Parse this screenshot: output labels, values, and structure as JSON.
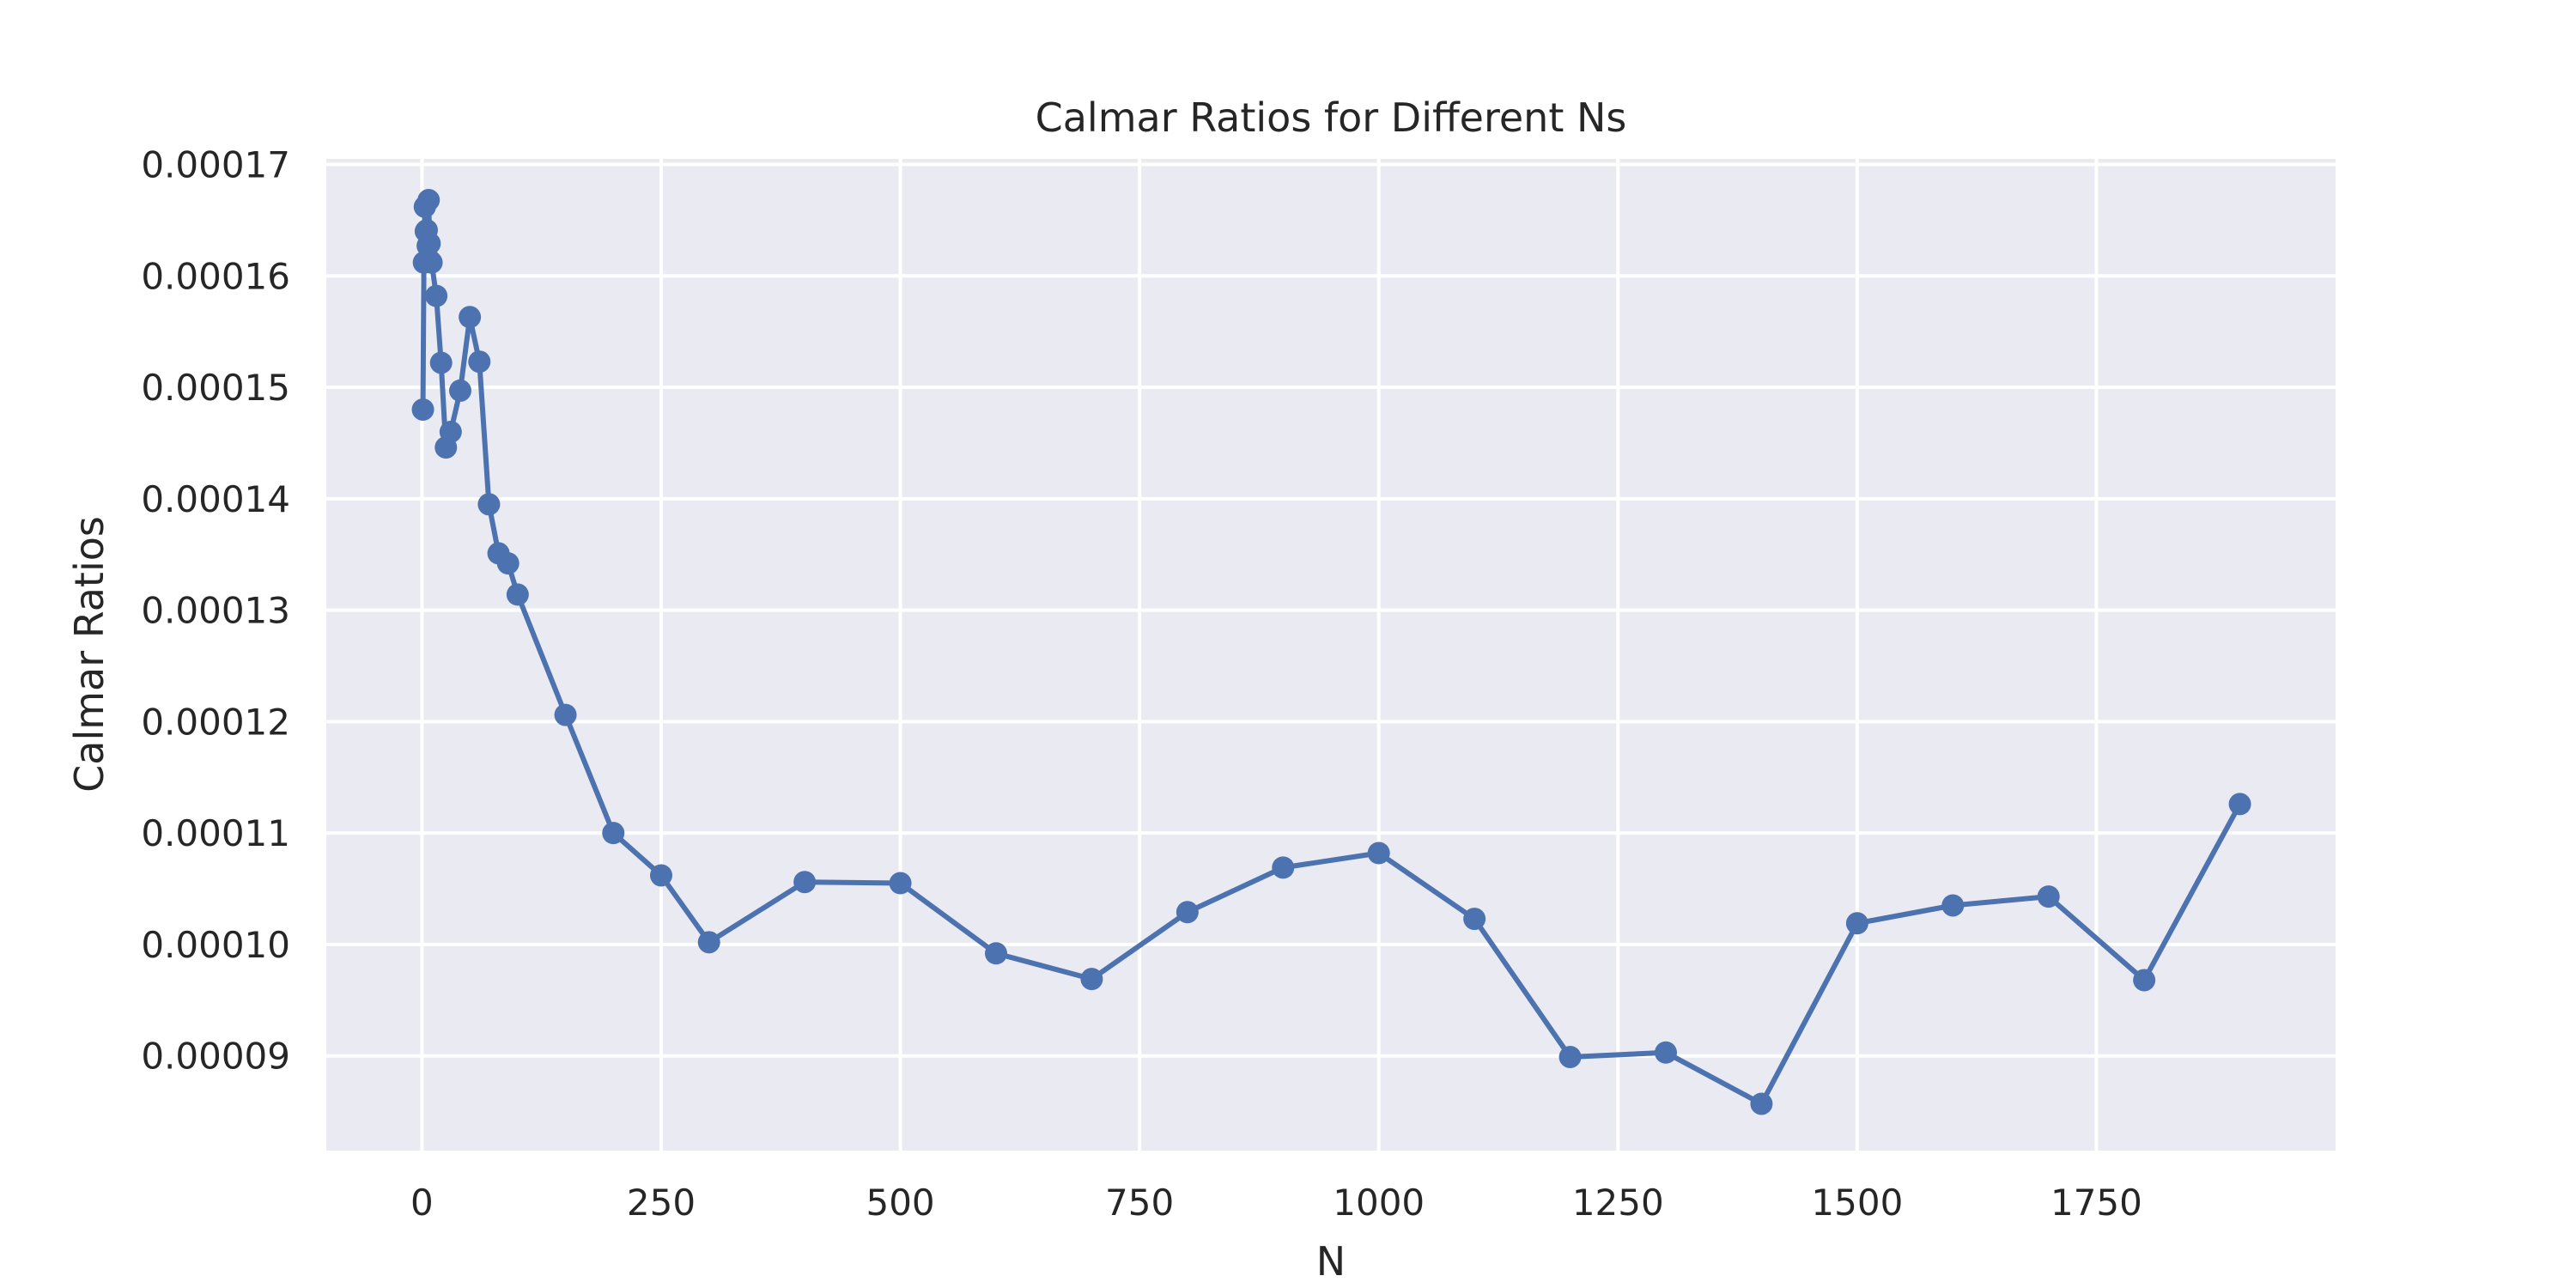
{
  "chart_data": {
    "type": "line",
    "title": "Calmar Ratios for Different Ns",
    "xlabel": "N",
    "ylabel": "Calmar Ratios",
    "xlim": [
      -100,
      2000
    ],
    "ylim": [
      8.15e-05,
      0.0001705
    ],
    "grid": true,
    "legend": "none",
    "x_ticks": [
      0,
      250,
      500,
      750,
      1000,
      1250,
      1500,
      1750
    ],
    "x_tick_labels": [
      "0",
      "250",
      "500",
      "750",
      "1000",
      "1250",
      "1500",
      "1750"
    ],
    "y_ticks": [
      9e-05,
      0.0001,
      0.00011,
      0.00012,
      0.00013,
      0.00014,
      0.00015,
      0.00016,
      0.00017
    ],
    "y_tick_labels": [
      "0.00009",
      "0.00010",
      "0.00011",
      "0.00012",
      "0.00013",
      "0.00014",
      "0.00015",
      "0.00016",
      "0.00017"
    ],
    "series": [
      {
        "color": "#4c72b0",
        "x": [
          1,
          2,
          3,
          4,
          5,
          6,
          7,
          8,
          9,
          10,
          15,
          20,
          25,
          30,
          40,
          50,
          60,
          70,
          80,
          90,
          100,
          150,
          200,
          250,
          300,
          400,
          500,
          600,
          700,
          800,
          900,
          1000,
          1100,
          1200,
          1300,
          1400,
          1500,
          1600,
          1700,
          1800,
          1900
        ],
        "y": [
          0.000148,
          0.0001612,
          0.0001662,
          0.000164,
          0.0001641,
          0.0001627,
          0.0001668,
          0.0001629,
          0.0001613,
          0.0001612,
          0.0001582,
          0.0001522,
          0.0001446,
          0.000146,
          0.0001497,
          0.0001563,
          0.0001523,
          0.0001395,
          0.0001351,
          0.0001342,
          0.0001314,
          0.0001206,
          0.00011,
          0.0001062,
          0.0001002,
          0.0001056,
          0.0001055,
          9.92e-05,
          9.69e-05,
          0.0001029,
          0.0001069,
          0.0001082,
          0.0001023,
          8.99e-05,
          9.03e-05,
          8.57e-05,
          0.0001019,
          0.0001035,
          0.0001043,
          9.68e-05,
          0.0001126
        ]
      }
    ]
  }
}
